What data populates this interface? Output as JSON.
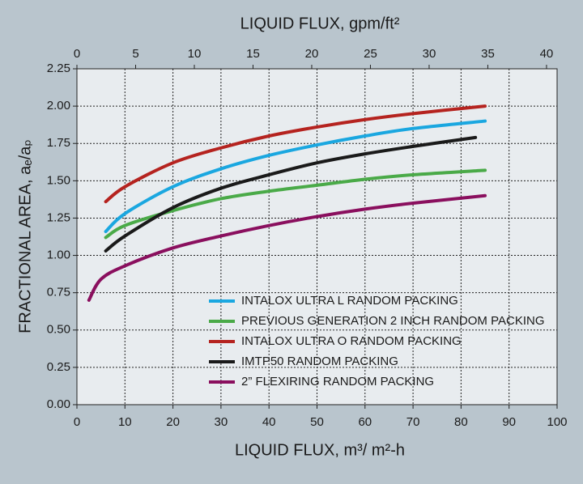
{
  "chart_data": {
    "type": "line",
    "title": "LIQUID FLUX, gpm/ft²",
    "x_label": "LIQUID FLUX, m³/ m²-h",
    "y_label": "FRACTIONAL AREA, aₑ/aₚ",
    "xlim": [
      0,
      100
    ],
    "xticks": [
      0,
      10,
      20,
      30,
      40,
      50,
      60,
      70,
      80,
      90,
      100
    ],
    "x2lim": [
      0,
      40.9
    ],
    "x2ticks": [
      0,
      5,
      10,
      15,
      20,
      25,
      30,
      35,
      40
    ],
    "ylim": [
      0,
      2.25
    ],
    "yticks": [
      {
        "value": 0,
        "label": "0.00"
      },
      {
        "value": 0.25,
        "label": "0.25"
      },
      {
        "value": 0.5,
        "label": "0.50"
      },
      {
        "value": 0.75,
        "label": "0.75"
      },
      {
        "value": 1,
        "label": "1.00"
      },
      {
        "value": 1.25,
        "label": "1.25"
      },
      {
        "value": 1.5,
        "label": "1.50"
      },
      {
        "value": 1.75,
        "label": "1.75"
      },
      {
        "value": 2,
        "label": "2.00"
      },
      {
        "value": 2.25,
        "label": "2.25"
      }
    ],
    "grid": true,
    "series": [
      {
        "name": "INTALOX ULTRA L RANDOM PACKING",
        "color": "#1aa7e0",
        "x": [
          6,
          10,
          20,
          30,
          40,
          50,
          60,
          70,
          85
        ],
        "values": [
          1.16,
          1.28,
          1.46,
          1.58,
          1.67,
          1.74,
          1.8,
          1.85,
          1.9
        ]
      },
      {
        "name": "PREVIOUS GENERATION 2 INCH RANDOM PACKING",
        "color": "#4aaa48",
        "x": [
          6,
          10,
          20,
          30,
          40,
          50,
          60,
          70,
          85
        ],
        "values": [
          1.12,
          1.2,
          1.3,
          1.38,
          1.43,
          1.47,
          1.51,
          1.54,
          1.57
        ]
      },
      {
        "name": "INTALOX ULTRA O RANDOM PACKING",
        "color": "#b5231f",
        "x": [
          6,
          10,
          20,
          30,
          40,
          50,
          60,
          70,
          85
        ],
        "values": [
          1.36,
          1.46,
          1.62,
          1.72,
          1.8,
          1.86,
          1.91,
          1.95,
          2.0
        ]
      },
      {
        "name": "IMTP50 RANDOM PACKING",
        "color": "#1a1a1a",
        "x": [
          6,
          10,
          20,
          30,
          40,
          50,
          60,
          70,
          83
        ],
        "values": [
          1.03,
          1.13,
          1.32,
          1.45,
          1.54,
          1.62,
          1.68,
          1.73,
          1.79
        ]
      },
      {
        "name": "2” FLEXIRING RANDOM PACKING",
        "color": "#8a0f5e",
        "x": [
          2.5,
          5,
          10,
          20,
          30,
          40,
          50,
          60,
          70,
          85
        ],
        "values": [
          0.7,
          0.84,
          0.93,
          1.05,
          1.13,
          1.2,
          1.26,
          1.31,
          1.35,
          1.4
        ]
      }
    ]
  }
}
